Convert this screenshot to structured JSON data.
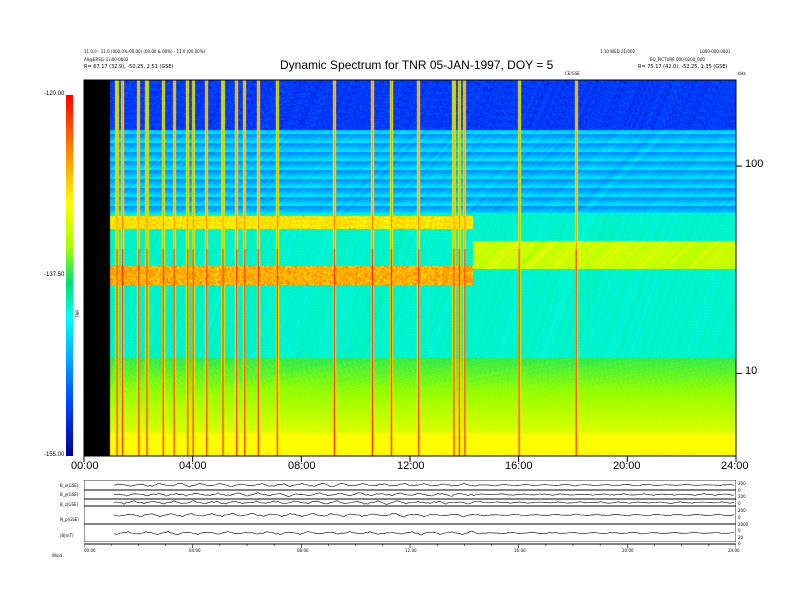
{
  "header": {
    "title": "Dynamic Spectrum for TNR 05-JAN-1997, DOY = 5",
    "left_line1": "11 0.0 - 11.0 (000.0%-00.00) (00.00 & 00%) - 11.0 (00.00%)",
    "left_line2": "All@ERSG-3 n00-0002",
    "left_rec": "R=  67.17 (32.9), -50.25, 2.51 (GSE)",
    "right_line1": "1.10 WED 21/002",
    "right_line1b": "L000-000-0001",
    "right_line2": "EQ_PICTURE 000-0200_000",
    "right_rec": "R=  75.17 (42.0), -52.25, 1.35 (GSE)",
    "right_unit": "kHz",
    "marker": "CE/GSE"
  },
  "chart_data": {
    "type": "heatmap",
    "title": "Dynamic Spectrum for TNR 05-JAN-1997, DOY = 5",
    "x_ticks": [
      "00:00",
      "04:00",
      "08:00",
      "12:00",
      "16:00",
      "20:00",
      "24:00"
    ],
    "xlim_hours": [
      0,
      24
    ],
    "y_ticks": [
      "100",
      "10"
    ],
    "y_unit": "kHz",
    "ylim_khz": [
      4,
      260
    ],
    "yscale": "log",
    "colorbar": {
      "ticks": [
        "-120.00",
        "-137.50",
        "-155.00"
      ],
      "label": "TNR",
      "range": [
        -155,
        -120
      ]
    },
    "data_gap_hours": [
      0,
      0.95
    ]
  },
  "bottom_panel": {
    "row_labels": [
      "B_x(GSE)",
      "B_y(GSE)",
      "B_z(GSE)",
      "N_p(GSE)",
      "|B|(nT)"
    ],
    "right_labels": [
      "200",
      "0",
      "200",
      "0",
      "200",
      "0",
      "2000",
      "0",
      "20",
      "0"
    ],
    "mini_ticks": [
      "00:00",
      "04:00",
      "08:00",
      "12:00",
      "16:00",
      "20:00",
      "24:00"
    ],
    "corner_label": "Wind   "
  }
}
